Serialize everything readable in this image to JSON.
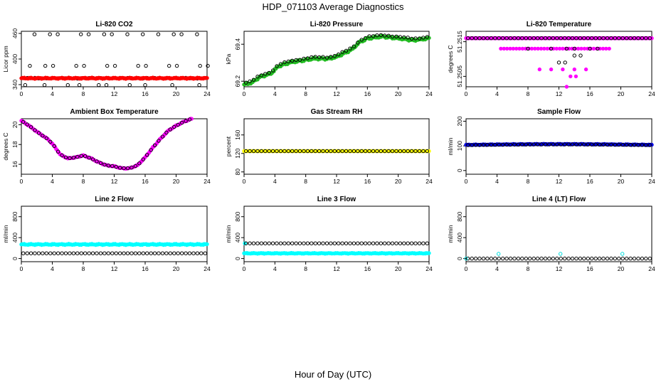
{
  "page": {
    "title": "HDP_071103  Average Diagnostics",
    "xlabel": "Hour of Day (UTC)"
  },
  "chart_data": [
    {
      "type": "scatter",
      "title": "Li-820 CO2",
      "ylabel": "Licor ppm",
      "xlim": [
        0,
        24
      ],
      "ylim": [
        335,
        465
      ],
      "xticks": [
        "0",
        "4",
        "8",
        "12",
        "16",
        "20",
        "24"
      ],
      "yticks": [
        {
          "v": 340,
          "t": "340"
        },
        {
          "v": 400,
          "t": "400"
        },
        {
          "v": 460,
          "t": "460"
        }
      ],
      "series": [
        {
          "color": "#000000",
          "fill": "none",
          "pattern": "co2_black"
        },
        {
          "color": "#ff0000",
          "fill": "#ff0000",
          "pattern": "co2_red"
        }
      ]
    },
    {
      "type": "scatter",
      "title": "Li-820 Pressure",
      "ylabel": "kPa",
      "xlim": [
        0,
        24
      ],
      "ylim": [
        69.17,
        69.47
      ],
      "xticks": [
        "0",
        "4",
        "8",
        "12",
        "16",
        "20",
        "24"
      ],
      "yticks": [
        {
          "v": 69.2,
          "t": "69.2"
        },
        {
          "v": 69.4,
          "t": "69.4"
        }
      ],
      "series": [
        {
          "color": "#22bb22",
          "fill": "#22bb22",
          "pattern": "press_green"
        },
        {
          "color": "#000000",
          "fill": "none",
          "pattern": "press_black"
        }
      ]
    },
    {
      "type": "scatter",
      "title": "Li-820 Temperature",
      "ylabel": "degrees C",
      "xlim": [
        0,
        24
      ],
      "ylim": [
        51.2502,
        51.2518
      ],
      "xticks": [
        "0",
        "4",
        "8",
        "12",
        "16",
        "20",
        "24"
      ],
      "yticks": [
        {
          "v": 51.2505,
          "t": "51.2505"
        },
        {
          "v": 51.2515,
          "t": "51.2515"
        }
      ],
      "series": [
        {
          "color": "#ff00ff",
          "fill": "#ff00ff",
          "pattern": "ltemp_mag"
        },
        {
          "color": "#000000",
          "fill": "none",
          "pattern": "ltemp_black"
        }
      ]
    },
    {
      "type": "scatter",
      "title": "Ambient Box Temperature",
      "ylabel": "degrees C",
      "xlim": [
        0,
        24
      ],
      "ylim": [
        15.0,
        20.6
      ],
      "xticks": [
        "0",
        "4",
        "8",
        "12",
        "16",
        "20",
        "24"
      ],
      "yticks": [
        {
          "v": 16,
          "t": "16"
        },
        {
          "v": 18,
          "t": "18"
        },
        {
          "v": 20,
          "t": "20"
        }
      ],
      "series": [
        {
          "color": "#ff00ff",
          "fill": "#ff00ff",
          "pattern": "amb_mag"
        },
        {
          "color": "#000000",
          "fill": "none",
          "pattern": "amb_black"
        }
      ]
    },
    {
      "type": "scatter",
      "title": "Gas Stream RH",
      "ylabel": "percent",
      "xlim": [
        0,
        24
      ],
      "ylim": [
        75,
        195
      ],
      "xticks": [
        "0",
        "4",
        "8",
        "12",
        "16",
        "20",
        "24"
      ],
      "yticks": [
        {
          "v": 80,
          "t": "80"
        },
        {
          "v": 120,
          "t": "120"
        },
        {
          "v": 160,
          "t": "160"
        }
      ],
      "series": [
        {
          "color": "#ffff00",
          "fill": "#ffff00",
          "pattern": "rh_yellow"
        },
        {
          "color": "#000000",
          "fill": "none",
          "pattern": "rh_black"
        }
      ]
    },
    {
      "type": "scatter",
      "title": "Sample Flow",
      "ylabel": "ml/min",
      "xlim": [
        0,
        24
      ],
      "ylim": [
        -15,
        210
      ],
      "xticks": [
        "0",
        "4",
        "8",
        "12",
        "16",
        "20",
        "24"
      ],
      "yticks": [
        {
          "v": 0,
          "t": "0"
        },
        {
          "v": 100,
          "t": "100"
        },
        {
          "v": 200,
          "t": "200"
        }
      ],
      "series": [
        {
          "color": "#0000dd",
          "fill": "#0000dd",
          "pattern": "sf_blue"
        },
        {
          "color": "#000000",
          "fill": "none",
          "pattern": "sf_black"
        }
      ]
    },
    {
      "type": "scatter",
      "title": "Line 2 Flow",
      "ylabel": "ml/min",
      "xlim": [
        0,
        24
      ],
      "ylim": [
        -60,
        1000
      ],
      "xticks": [
        "0",
        "4",
        "8",
        "12",
        "16",
        "20",
        "24"
      ],
      "yticks": [
        {
          "v": 0,
          "t": "0"
        },
        {
          "v": 400,
          "t": "400"
        },
        {
          "v": 800,
          "t": "800"
        }
      ],
      "series": [
        {
          "color": "#00ffff",
          "fill": "#00ffff",
          "pattern": "l2_cyan"
        },
        {
          "color": "#000000",
          "fill": "none",
          "pattern": "l2_black"
        }
      ]
    },
    {
      "type": "scatter",
      "title": "Line 3 Flow",
      "ylabel": "ml/min",
      "xlim": [
        0,
        24
      ],
      "ylim": [
        -60,
        1000
      ],
      "xticks": [
        "0",
        "4",
        "8",
        "12",
        "16",
        "20",
        "24"
      ],
      "yticks": [
        {
          "v": 0,
          "t": "0"
        },
        {
          "v": 400,
          "t": "400"
        },
        {
          "v": 800,
          "t": "800"
        }
      ],
      "series": [
        {
          "color": "#00ffff",
          "fill": "#00ffff",
          "pattern": "l3_cyan"
        },
        {
          "color": "#000000",
          "fill": "none",
          "pattern": "l3_black"
        }
      ]
    },
    {
      "type": "scatter",
      "title": "Line 4 (LT) Flow",
      "ylabel": "ml/min",
      "xlim": [
        0,
        24
      ],
      "ylim": [
        -60,
        1000
      ],
      "xticks": [
        "0",
        "4",
        "8",
        "12",
        "16",
        "20",
        "24"
      ],
      "yticks": [
        {
          "v": 0,
          "t": "0"
        },
        {
          "v": 400,
          "t": "400"
        },
        {
          "v": 800,
          "t": "800"
        }
      ],
      "series": [
        {
          "color": "#000000",
          "fill": "none",
          "pattern": "l4_black"
        },
        {
          "color": "#00dddd",
          "fill": "none",
          "pattern": "l4_cyan"
        }
      ]
    }
  ]
}
